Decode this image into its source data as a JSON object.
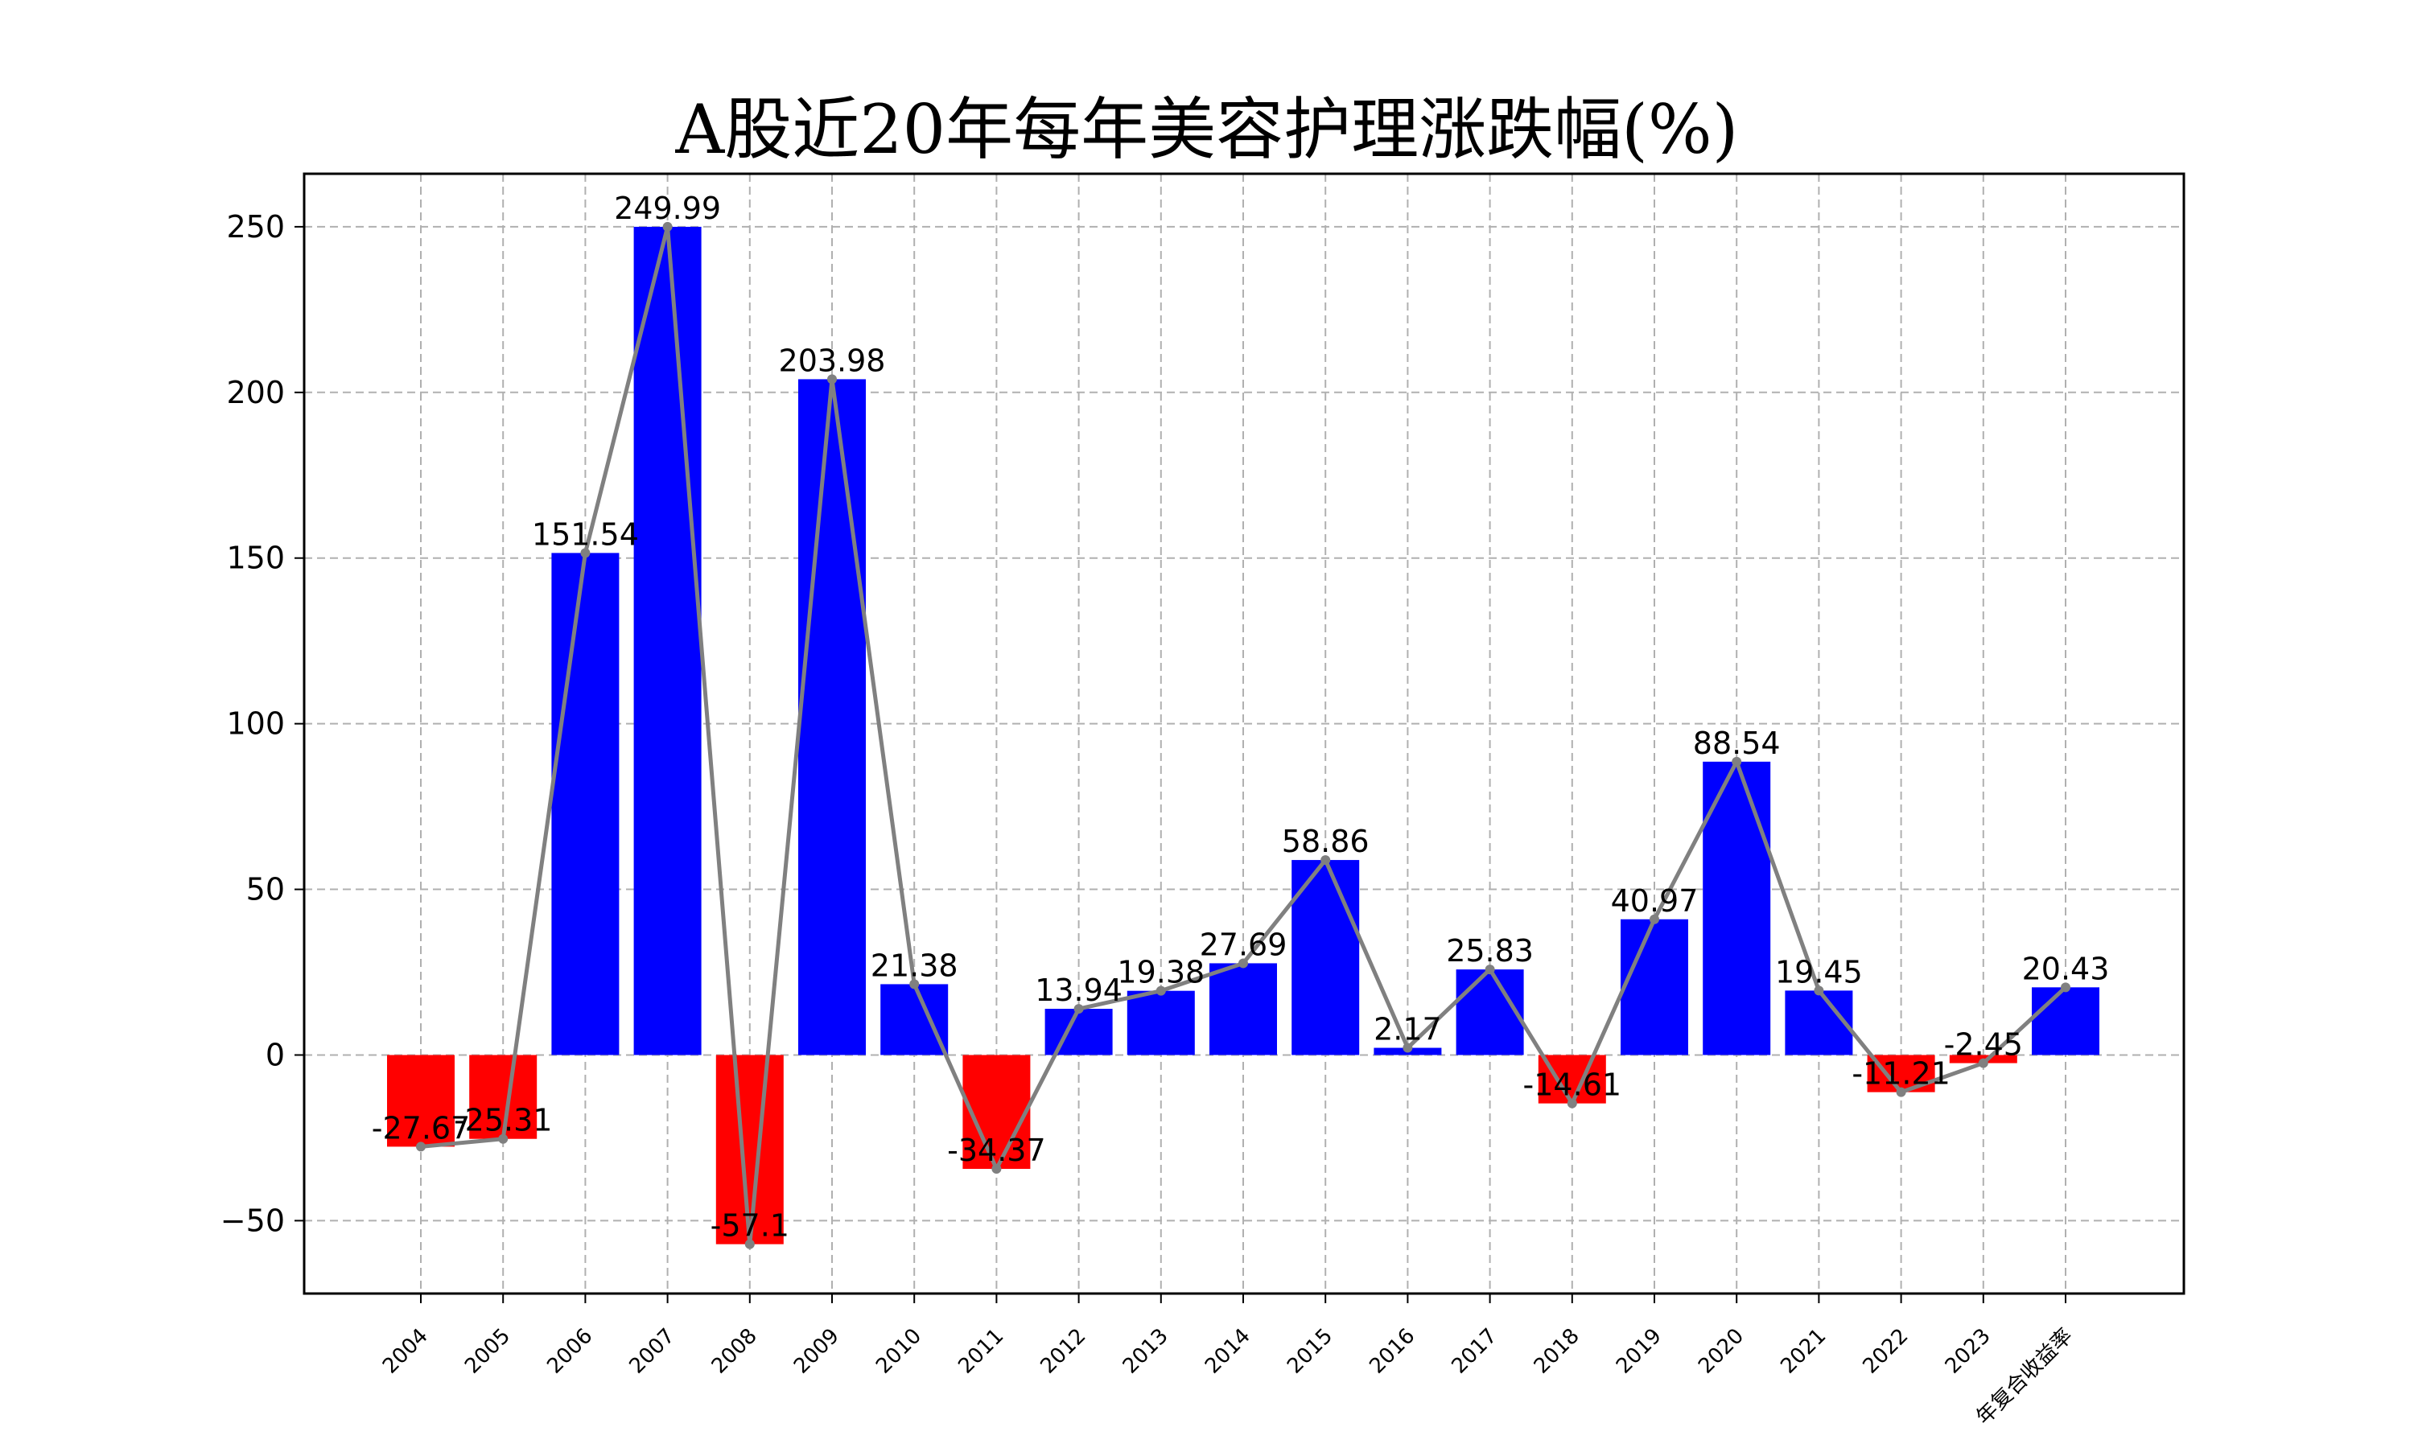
{
  "chart_data": {
    "type": "bar",
    "title": "A股近20年每年美容护理涨跌幅(%)",
    "xlabel": "",
    "ylabel": "",
    "categories": [
      "2004",
      "2005",
      "2006",
      "2007",
      "2008",
      "2009",
      "2010",
      "2011",
      "2012",
      "2013",
      "2014",
      "2015",
      "2016",
      "2017",
      "2018",
      "2019",
      "2020",
      "2021",
      "2022",
      "2023",
      "年复合收益率"
    ],
    "values": [
      -27.67,
      -25.31,
      151.54,
      249.99,
      -57.1,
      203.98,
      21.38,
      -34.37,
      13.94,
      19.38,
      27.69,
      58.86,
      2.17,
      25.83,
      -14.61,
      40.97,
      88.54,
      19.45,
      -11.21,
      -2.45,
      20.43
    ],
    "value_labels": [
      "-27.67",
      "-25.31",
      "151.54",
      "249.99",
      "-57.1",
      "203.98",
      "21.38",
      "-34.37",
      "13.94",
      "19.38",
      "27.69",
      "58.86",
      "2.17",
      "25.83",
      "-14.61",
      "40.97",
      "88.54",
      "19.45",
      "-11.21",
      "-2.45",
      "20.43"
    ],
    "overlay_line": true,
    "ylim": [
      -72,
      266
    ],
    "yticks": [
      -50,
      0,
      50,
      100,
      150,
      200,
      250
    ],
    "ytick_labels": [
      "−50",
      "0",
      "50",
      "100",
      "150",
      "200",
      "250"
    ],
    "grid": true,
    "colors": {
      "positive": "#0000ff",
      "negative": "#ff0000",
      "line": "#808080",
      "grid": "#b0b0b0",
      "axis": "#000000"
    }
  }
}
